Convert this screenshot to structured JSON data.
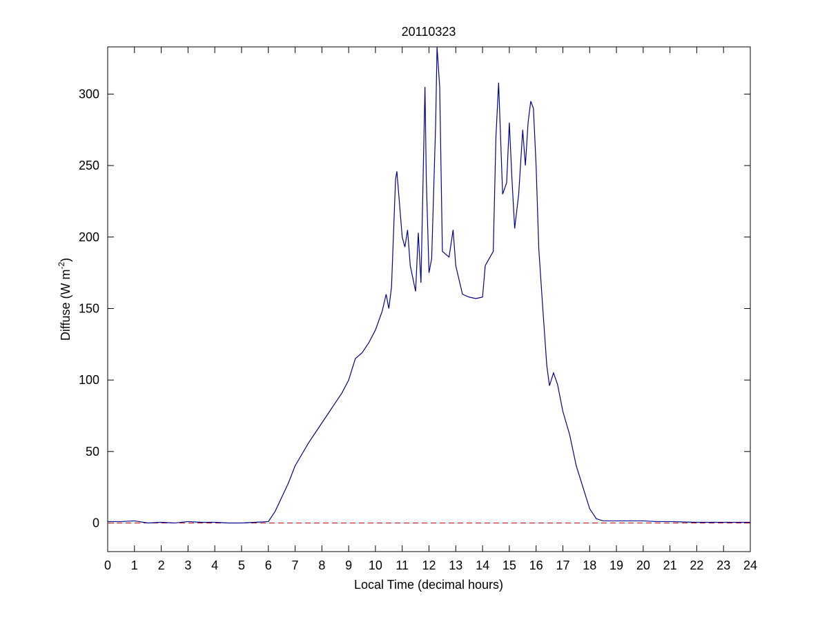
{
  "chart_data": {
    "type": "line",
    "title": "20110323",
    "x_label": "Local Time (decimal hours)",
    "y_label": {
      "text": "Diffuse (W m",
      "superscript": "-2",
      "suffix": ")"
    },
    "x": [
      0,
      0.5,
      1,
      1.5,
      2,
      2.5,
      3,
      3.5,
      4,
      4.5,
      5,
      5.5,
      6,
      6.25,
      6.5,
      6.75,
      7,
      7.25,
      7.5,
      7.75,
      8,
      8.25,
      8.5,
      8.75,
      9,
      9.25,
      9.5,
      9.75,
      10,
      10.25,
      10.4,
      10.5,
      10.6,
      10.75,
      10.8,
      11,
      11.1,
      11.2,
      11.3,
      11.5,
      11.6,
      11.7,
      11.85,
      11.9,
      12,
      12.1,
      12.25,
      12.3,
      12.4,
      12.5,
      12.75,
      12.9,
      13,
      13.25,
      13.5,
      13.75,
      14,
      14.1,
      14.25,
      14.4,
      14.5,
      14.6,
      14.75,
      14.9,
      15,
      15.1,
      15.2,
      15.35,
      15.5,
      15.6,
      15.7,
      15.8,
      15.9,
      16,
      16.1,
      16.25,
      16.4,
      16.5,
      16.65,
      16.8,
      17,
      17.25,
      17.5,
      17.75,
      18,
      18.25,
      18.5,
      19,
      20,
      20.5,
      21,
      22,
      23,
      24
    ],
    "series": [
      {
        "color": "#00008b",
        "values": [
          1,
          1,
          1.5,
          0,
          0.5,
          0,
          1,
          0.5,
          0.5,
          0,
          0,
          0.5,
          1,
          8,
          18,
          28,
          40,
          48,
          56,
          63,
          70,
          77,
          84,
          91,
          100,
          115,
          119,
          126,
          135,
          148,
          160,
          150,
          165,
          240,
          246,
          200,
          193,
          205,
          180,
          162,
          203,
          168,
          305,
          240,
          175,
          185,
          280,
          333,
          305,
          190,
          186,
          205,
          180,
          160,
          158,
          157,
          158,
          180,
          185,
          190,
          270,
          308,
          230,
          238,
          280,
          240,
          206,
          230,
          275,
          250,
          280,
          295,
          290,
          250,
          192,
          150,
          110,
          96,
          105,
          97,
          78,
          62,
          40,
          25,
          10,
          3,
          1.5,
          1.5,
          1.5,
          1,
          1,
          0.5,
          0.5,
          0.5
        ]
      }
    ],
    "reference_line": {
      "value": 0,
      "color": "#c00000",
      "style": "dashed"
    },
    "xlim": [
      0,
      24
    ],
    "xticks": [
      0,
      1,
      2,
      3,
      4,
      5,
      6,
      7,
      8,
      9,
      10,
      11,
      12,
      13,
      14,
      15,
      16,
      17,
      18,
      19,
      20,
      21,
      22,
      23,
      24
    ],
    "ylim": [
      -20,
      333
    ],
    "yticks": [
      0,
      50,
      100,
      150,
      200,
      250,
      300
    ]
  }
}
